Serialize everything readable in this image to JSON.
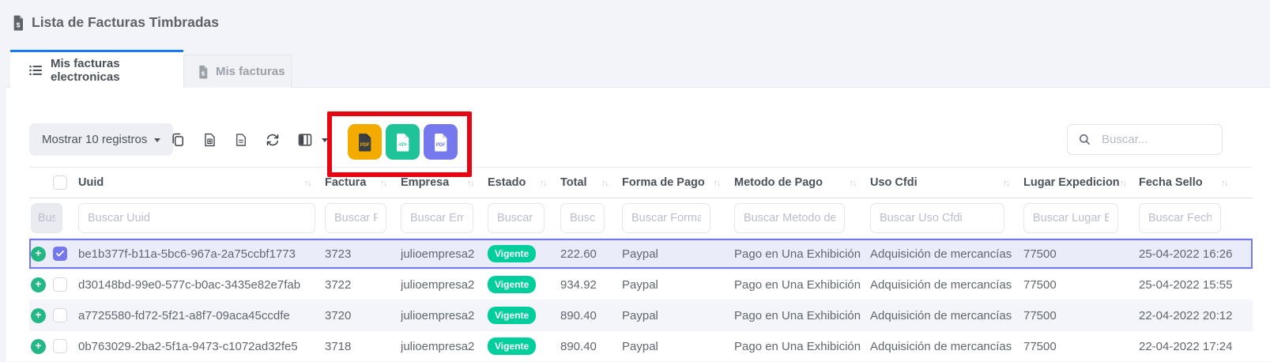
{
  "colors": {
    "page_background": "#f3f4f9",
    "accent_blue": "#1c78f2",
    "selected_purple": "#7478ec",
    "selected_row_bg": "#ebecfa",
    "badge_green": "#00cf9d",
    "plus_green": "#22b783",
    "annotation_red": "#e40613"
  },
  "header": {
    "title": "Lista de Facturas Timbradas",
    "title_icon": "invoice-dollar-icon"
  },
  "tabs": [
    {
      "label": "Mis facturas electronicas",
      "icon": "list-icon",
      "active": true
    },
    {
      "label": "Mis facturas",
      "icon": "invoice-icon",
      "active": false
    }
  ],
  "toolbar": {
    "show_entries": "Mostrar 10 registros",
    "icons": [
      {
        "name": "copy-icon"
      },
      {
        "name": "export-excel-icon"
      },
      {
        "name": "export-file-icon"
      },
      {
        "name": "refresh-icon"
      },
      {
        "name": "column-visibility-icon"
      }
    ],
    "export_buttons": [
      {
        "name": "export-pdf-yellow-button",
        "icon": "file-pdf-icon",
        "color": "#f3ab00",
        "icon_style": "dark"
      },
      {
        "name": "export-xml-green-button",
        "icon": "file-xml-icon",
        "color": "#1ec498",
        "icon_style": "light"
      },
      {
        "name": "export-pdf-purple-button",
        "icon": "file-pdf-icon",
        "color": "#7678ee",
        "icon_style": "light"
      }
    ],
    "search": {
      "placeholder": "Buscar...",
      "value": ""
    }
  },
  "table": {
    "select_filter_placeholder": "Buscar",
    "columns": [
      {
        "key": "uuid",
        "label": "Uuid",
        "filter_placeholder": "Buscar Uuid"
      },
      {
        "key": "factura",
        "label": "Factura",
        "filter_placeholder": "Buscar Factura"
      },
      {
        "key": "empresa",
        "label": "Empresa",
        "filter_placeholder": "Buscar Empresa"
      },
      {
        "key": "estado",
        "label": "Estado",
        "filter_placeholder": "Buscar Estado"
      },
      {
        "key": "total",
        "label": "Total",
        "filter_placeholder": "Buscar Total"
      },
      {
        "key": "forma",
        "label": "Forma de Pago",
        "filter_placeholder": "Buscar Forma de Pago"
      },
      {
        "key": "metodo",
        "label": "Metodo de Pago",
        "filter_placeholder": "Buscar Metodo de Pago"
      },
      {
        "key": "uso",
        "label": "Uso Cfdi",
        "filter_placeholder": "Buscar Uso Cfdi"
      },
      {
        "key": "lugar",
        "label": "Lugar Expedicion",
        "filter_placeholder": "Buscar Lugar Expedicion"
      },
      {
        "key": "fecha",
        "label": "Fecha Sello",
        "filter_placeholder": "Buscar Fecha Sello"
      }
    ],
    "rows": [
      {
        "selected": true,
        "checked": true,
        "uuid": "be1b377f-b11a-5bc6-967a-2a75ccbf1773",
        "factura": "3723",
        "empresa": "julioempresa2",
        "estado": "Vigente",
        "total": "222.60",
        "forma": "Paypal",
        "metodo": "Pago en Una Exhibición",
        "uso": "Adquisición de mercancías",
        "lugar": "77500",
        "fecha": "25-04-2022 16:26"
      },
      {
        "selected": false,
        "checked": false,
        "uuid": "d30148bd-99e0-577c-b0ac-3435e82e7fab",
        "factura": "3722",
        "empresa": "julioempresa2",
        "estado": "Vigente",
        "total": "934.92",
        "forma": "Paypal",
        "metodo": "Pago en Una Exhibición",
        "uso": "Adquisición de mercancías",
        "lugar": "77500",
        "fecha": "25-04-2022 15:55"
      },
      {
        "selected": false,
        "checked": false,
        "uuid": "a7725580-fd72-5f21-a8f7-09aca45ccdfe",
        "factura": "3720",
        "empresa": "julioempresa2",
        "estado": "Vigente",
        "total": "890.40",
        "forma": "Paypal",
        "metodo": "Pago en Una Exhibición",
        "uso": "Adquisición de mercancías",
        "lugar": "77500",
        "fecha": "22-04-2022 20:12"
      },
      {
        "selected": false,
        "checked": false,
        "uuid": "0b763029-2ba2-5f1a-9473-c1072ad32fe5",
        "factura": "3718",
        "empresa": "julioempresa2",
        "estado": "Vigente",
        "total": "890.40",
        "forma": "Paypal",
        "metodo": "Pago en Una Exhibición",
        "uso": "Adquisición de mercancías",
        "lugar": "77500",
        "fecha": "22-04-2022 17:24"
      }
    ]
  }
}
